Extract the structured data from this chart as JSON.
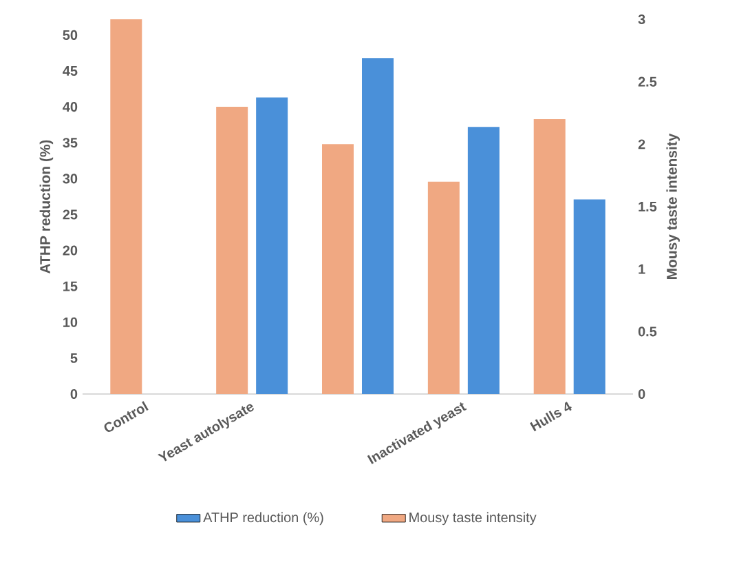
{
  "chart_data": {
    "type": "bar",
    "categories": [
      "Control",
      "Yeast autolysate",
      null,
      "Inactivated yeast",
      "Hulls 4"
    ],
    "series": [
      {
        "name": "ATHP reduction (%)",
        "color": "#4a90d9",
        "axis": "y",
        "values": [
          null,
          41.3,
          46.8,
          37.2,
          27.1
        ]
      },
      {
        "name": "Mousy taste intensity",
        "color": "#f0a882",
        "axis": "y2",
        "values": [
          3.0,
          2.3,
          2.0,
          1.7,
          2.2
        ]
      }
    ],
    "ylabel": "ATHP reduction (%)",
    "y2label": "Mousy taste intensity",
    "ylim": [
      0,
      52.2
    ],
    "yticks": [
      0,
      5,
      10,
      15,
      20,
      25,
      30,
      35,
      40,
      45,
      50
    ],
    "y2lim": [
      0,
      3
    ],
    "y2ticks": [
      0,
      0.5,
      1,
      1.5,
      2,
      2.5,
      3
    ],
    "legend": "bottom"
  }
}
